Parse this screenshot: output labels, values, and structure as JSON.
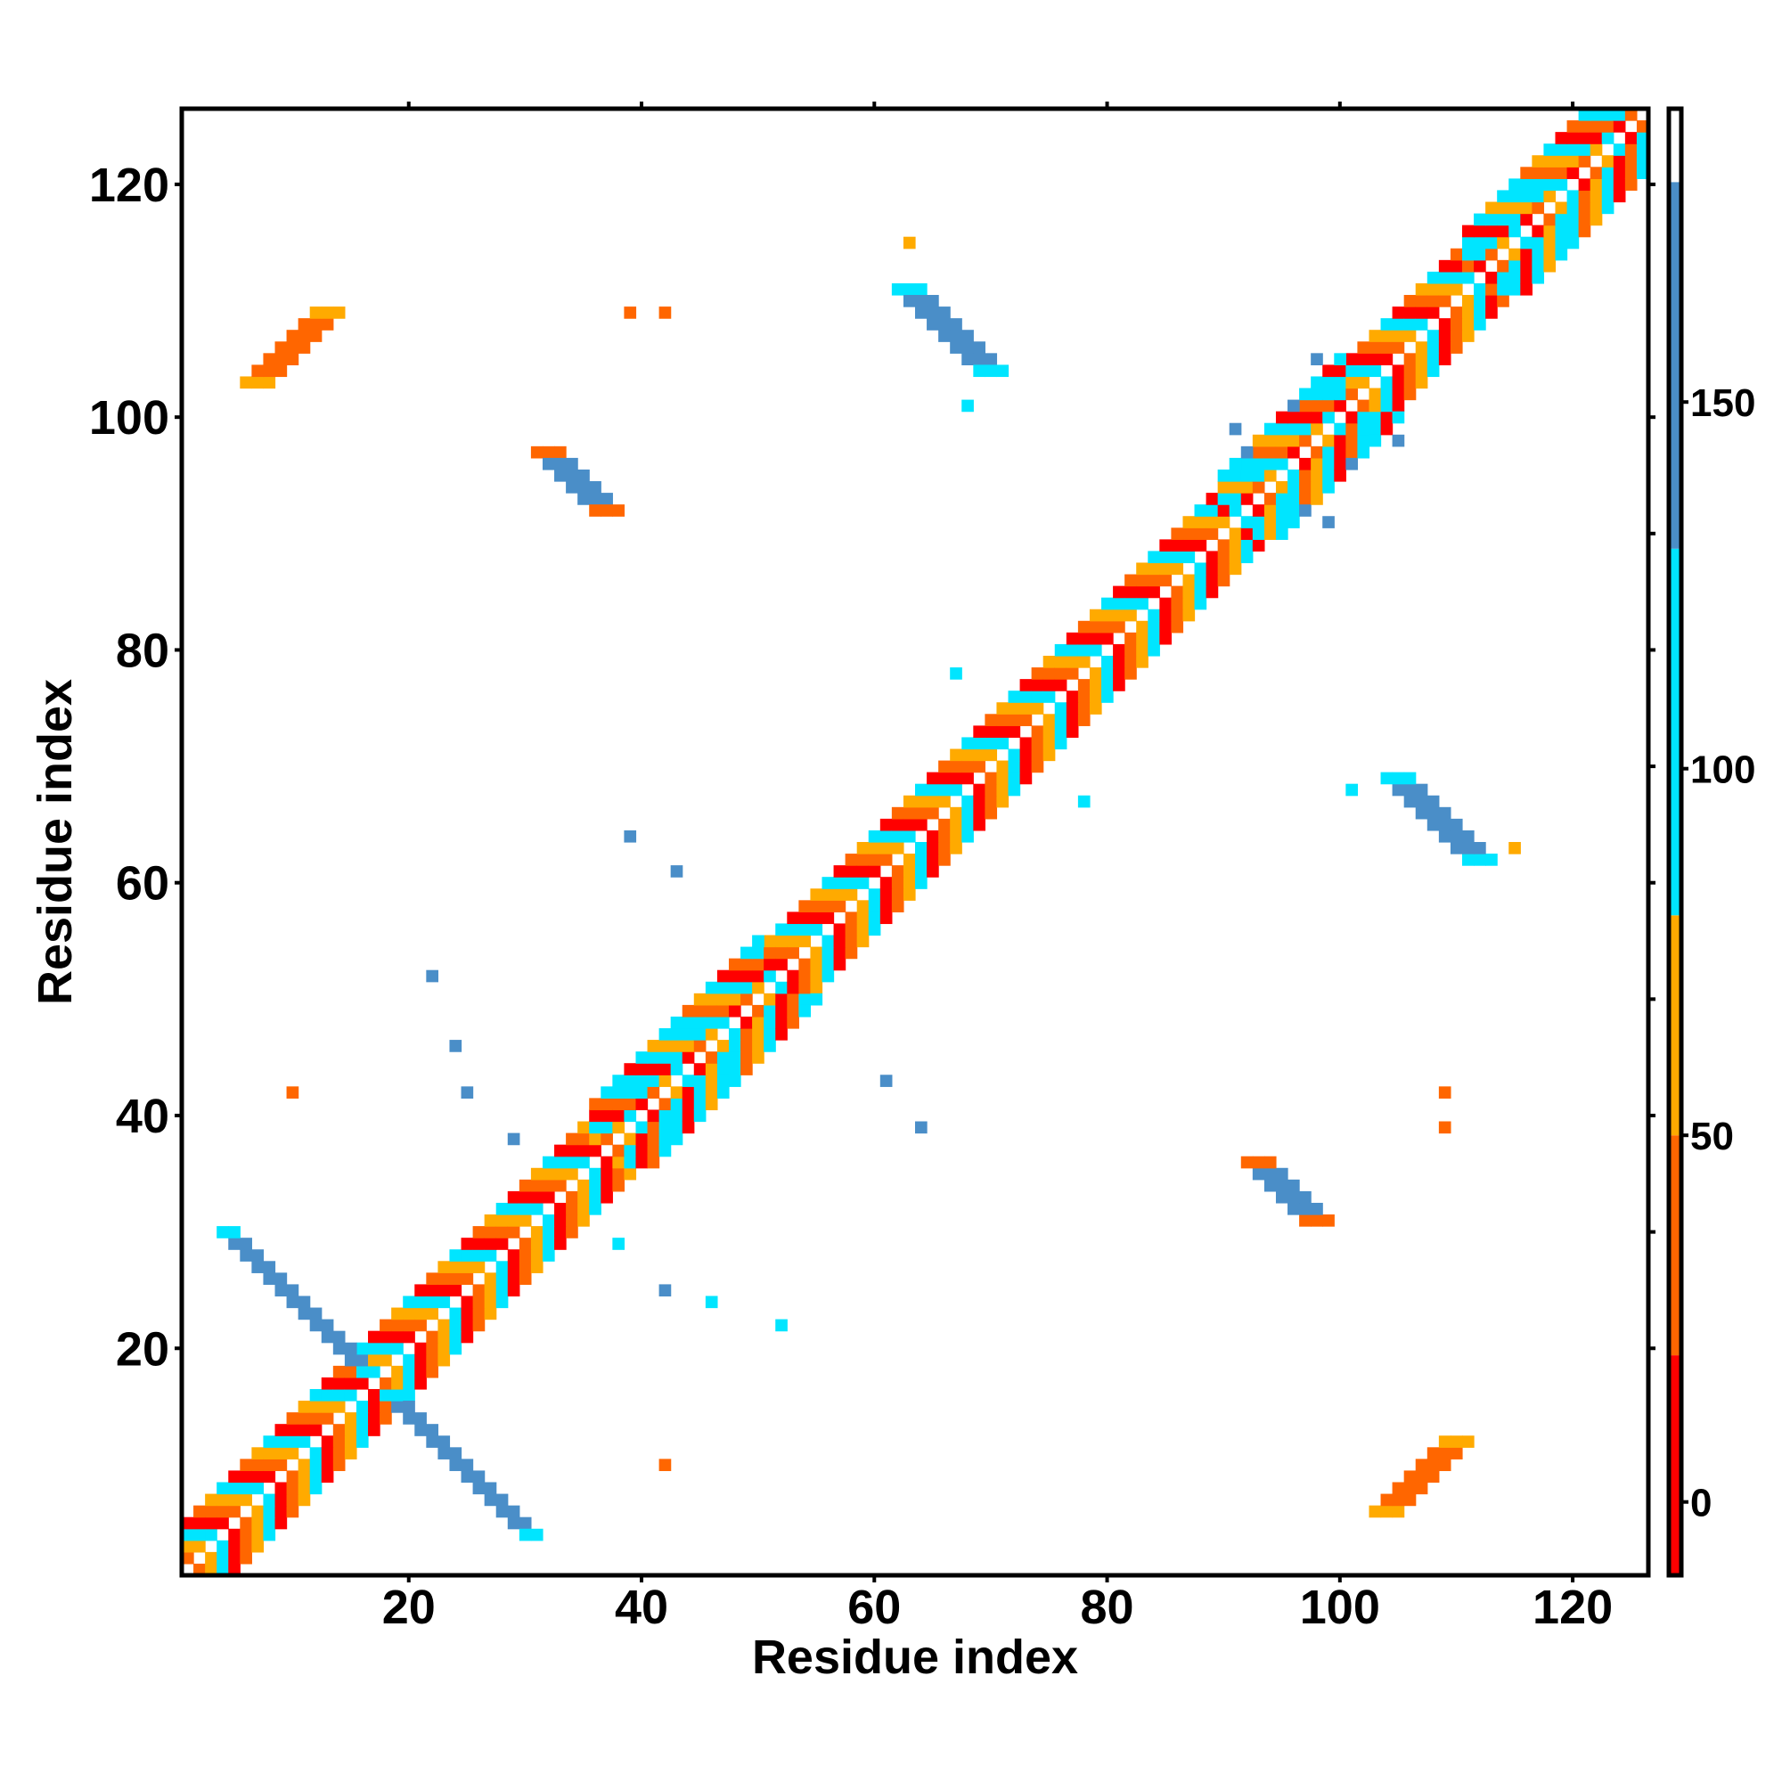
{
  "chart_data": {
    "type": "heatmap",
    "title": "",
    "xlabel": "Residue index",
    "ylabel": "Residue index",
    "xlim": [
      0.5,
      126.5
    ],
    "ylim": [
      0.5,
      126.5
    ],
    "xticks": [
      20,
      40,
      60,
      80,
      100,
      120
    ],
    "yticks": [
      20,
      40,
      60,
      80,
      100,
      120
    ],
    "grid": false,
    "colorbar": {
      "range": [
        -10,
        190
      ],
      "ticks": [
        0,
        50,
        100,
        150
      ],
      "bands": [
        {
          "from": -10,
          "to": 20,
          "color": "#ff0000"
        },
        {
          "from": 20,
          "to": 50,
          "color": "#ff6600"
        },
        {
          "from": 50,
          "to": 80,
          "color": "#ffaa00"
        },
        {
          "from": 80,
          "to": 130,
          "color": "#00e5ff"
        },
        {
          "from": 130,
          "to": 180,
          "color": "#4a8ec8"
        },
        {
          "from": 180,
          "to": 190,
          "color": "#ffffff"
        }
      ]
    },
    "diagonal": {
      "start": 1,
      "end": 126,
      "offsets": [
        1,
        2,
        3,
        4
      ],
      "pattern_values": [
        10,
        40,
        65,
        100
      ]
    },
    "regions": [
      {
        "name": "antiparallel-sheet-lower-left",
        "cells": [
          [
            18,
            16
          ],
          [
            19,
            15
          ],
          [
            20,
            14
          ],
          [
            21,
            13
          ],
          [
            22,
            12
          ],
          [
            23,
            11
          ],
          [
            24,
            10
          ],
          [
            25,
            9
          ],
          [
            26,
            8
          ],
          [
            27,
            7
          ],
          [
            28,
            6
          ],
          [
            29,
            5
          ],
          [
            30,
            4
          ]
        ],
        "width": 2,
        "value": 150,
        "edge_value": 110
      },
      {
        "name": "antiparallel-sheet-upper-left",
        "cells": [
          [
            16,
            18
          ],
          [
            15,
            19
          ],
          [
            14,
            20
          ],
          [
            13,
            21
          ],
          [
            12,
            22
          ],
          [
            11,
            23
          ],
          [
            10,
            24
          ],
          [
            9,
            25
          ],
          [
            8,
            26
          ],
          [
            7,
            27
          ],
          [
            6,
            28
          ],
          [
            5,
            29
          ],
          [
            4,
            30
          ]
        ],
        "width": 2,
        "value": 150,
        "edge_value": 110
      },
      {
        "name": "parallel-contact-top-left",
        "cells": [
          [
            6,
            103
          ],
          [
            7,
            104
          ],
          [
            8,
            105
          ],
          [
            9,
            106
          ],
          [
            10,
            107
          ],
          [
            11,
            108
          ],
          [
            12,
            109
          ]
        ],
        "width": 3,
        "value": 25,
        "edge_value": 50
      },
      {
        "name": "parallel-contact-bottom-right",
        "cells": [
          [
            103,
            6
          ],
          [
            104,
            7
          ],
          [
            105,
            8
          ],
          [
            106,
            9
          ],
          [
            107,
            10
          ],
          [
            108,
            11
          ],
          [
            109,
            12
          ]
        ],
        "width": 3,
        "value": 25,
        "edge_value": 50
      },
      {
        "name": "sheet-contact-upper-middle",
        "cells": [
          [
            62,
            111
          ],
          [
            63,
            110
          ],
          [
            64,
            109
          ],
          [
            65,
            108
          ],
          [
            66,
            107
          ],
          [
            67,
            106
          ],
          [
            68,
            105
          ],
          [
            69,
            104
          ]
        ],
        "width": 3,
        "value": 150,
        "edge_value": 110
      },
      {
        "name": "sheet-contact-right-middle",
        "cells": [
          [
            111,
            62
          ],
          [
            110,
            63
          ],
          [
            109,
            64
          ],
          [
            108,
            65
          ],
          [
            107,
            66
          ],
          [
            106,
            67
          ],
          [
            105,
            68
          ],
          [
            104,
            69
          ]
        ],
        "width": 3,
        "value": 150,
        "edge_value": 110
      },
      {
        "name": "helix-contact-upper",
        "cells": [
          [
            31,
            97
          ],
          [
            32,
            96
          ],
          [
            33,
            95
          ],
          [
            34,
            94
          ],
          [
            35,
            93
          ],
          [
            36,
            92
          ]
        ],
        "width": 3,
        "value": 140,
        "edge_value": 40
      },
      {
        "name": "helix-contact-lower",
        "cells": [
          [
            97,
            31
          ],
          [
            96,
            32
          ],
          [
            95,
            33
          ],
          [
            94,
            34
          ],
          [
            93,
            35
          ],
          [
            92,
            36
          ]
        ],
        "width": 3,
        "value": 140,
        "edge_value": 40
      }
    ],
    "helix_blocks": [
      {
        "from": 36,
        "to": 50,
        "value": 110
      },
      {
        "from": 90,
        "to": 100,
        "value": 110
      },
      {
        "from": 111,
        "to": 124,
        "value": 110
      }
    ],
    "isolated_cells": [
      [
        42,
        10,
        40
      ],
      [
        10,
        42,
        20
      ],
      [
        39,
        109,
        40
      ],
      [
        42,
        109,
        40
      ],
      [
        109,
        39,
        40
      ],
      [
        109,
        42,
        40
      ],
      [
        63,
        115,
        65
      ],
      [
        115,
        63,
        65
      ],
      [
        68,
        101,
        100
      ],
      [
        101,
        68,
        100
      ],
      [
        67,
        78,
        100
      ],
      [
        78,
        67,
        100
      ],
      [
        39,
        64,
        150
      ],
      [
        64,
        39,
        150
      ],
      [
        43,
        61,
        150
      ],
      [
        61,
        43,
        150
      ],
      [
        22,
        52,
        150
      ],
      [
        52,
        22,
        150
      ],
      [
        24,
        46,
        150
      ],
      [
        46,
        24,
        150
      ],
      [
        25,
        42,
        150
      ],
      [
        42,
        25,
        150
      ],
      [
        29,
        38,
        150
      ],
      [
        38,
        29,
        150
      ],
      [
        46,
        24,
        100
      ],
      [
        52,
        22,
        100
      ],
      [
        38,
        29,
        100
      ],
      [
        91,
        99,
        150
      ],
      [
        99,
        91,
        150
      ],
      [
        101,
        96,
        150
      ],
      [
        96,
        101,
        150
      ],
      [
        98,
        105,
        150
      ],
      [
        105,
        98,
        150
      ],
      [
        97,
        92,
        150
      ],
      [
        92,
        97,
        150
      ]
    ]
  }
}
